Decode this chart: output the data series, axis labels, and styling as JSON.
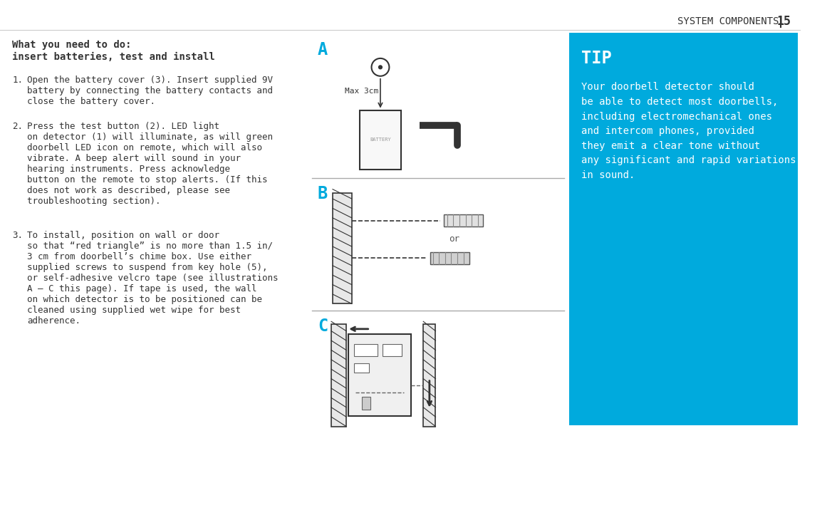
{
  "bg_color": "#FFFFFF",
  "tip_bg_color": "#00AADD",
  "tip_text_color": "#FFFFFF",
  "header_color": "#333333",
  "body_color": "#333333",
  "label_color_A": "#00AADD",
  "page_header": "SYSTEM COMPONENTS",
  "page_number": "15",
  "heading1": "What you need to do:",
  "heading2": "insert batteries, test and install",
  "step1": "Open the battery cover (3). Insert supplied 9V\nbattery by connecting the battery contacts and\nclose the battery cover.",
  "step2": "Press the test button (2). LED light\non detector (1) will illuminate, as will green\ndoorbell LED icon on remote, which will also\nvibrate. A beep alert will sound in your\nhearing instruments. Press acknowledge\nbutton on the remote to stop alerts. (If this\ndoes not work as described, please see\ntroubleshooting section).",
  "step3": "To install, position on wall or door\nso that “red triangle” is no more than 1.5 in/\n3 cm from doorbell’s chime box. Use either\nsupplied screws to suspend from key hole (5),\nor self-adhesive velcro tape (see illustrations\nA – C this page). If tape is used, the wall\non which detector is to be positioned can be\ncleaned using supplied wet wipe for best\nadherence.",
  "tip_title": "TIP",
  "tip_body": "Your doorbell detector should\nbe able to detect most doorbells,\nincluding electromechanical ones\nand intercom phones, provided\nthey emit a clear tone without\nany significant and rapid variations\nin sound.",
  "max3cm_label": "Max 3cm",
  "or_label": "or"
}
